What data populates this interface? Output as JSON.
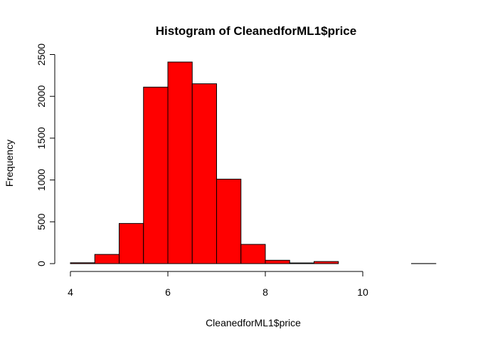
{
  "chart_data": {
    "type": "bar",
    "title": "Histogram of CleanedforML1$price",
    "xlabel": "CleanedforML1$price",
    "ylabel": "Frequency",
    "bins": [
      {
        "x0": 4.0,
        "x1": 4.5,
        "count": 10
      },
      {
        "x0": 4.5,
        "x1": 5.0,
        "count": 110
      },
      {
        "x0": 5.0,
        "x1": 5.5,
        "count": 480
      },
      {
        "x0": 5.5,
        "x1": 6.0,
        "count": 2110
      },
      {
        "x0": 6.0,
        "x1": 6.5,
        "count": 2410
      },
      {
        "x0": 6.5,
        "x1": 7.0,
        "count": 2150
      },
      {
        "x0": 7.0,
        "x1": 7.5,
        "count": 1010
      },
      {
        "x0": 7.5,
        "x1": 8.0,
        "count": 230
      },
      {
        "x0": 8.0,
        "x1": 8.5,
        "count": 40
      },
      {
        "x0": 8.5,
        "x1": 9.0,
        "count": 8
      },
      {
        "x0": 9.0,
        "x1": 9.5,
        "count": 25
      },
      {
        "x0": 9.5,
        "x1": 10.0,
        "count": 0
      },
      {
        "x0": 10.0,
        "x1": 10.5,
        "count": 0
      },
      {
        "x0": 10.5,
        "x1": 11.0,
        "count": 0
      },
      {
        "x0": 11.0,
        "x1": 11.5,
        "count": 1
      }
    ],
    "xticks": [
      4,
      6,
      8,
      10
    ],
    "yticks": [
      0,
      500,
      1000,
      1500,
      2000,
      2500
    ],
    "xlim": [
      4,
      11.5
    ],
    "ylim": [
      0,
      2500
    ],
    "bar_color": "#ff0000",
    "edge_color": "#000000",
    "grid": false
  }
}
